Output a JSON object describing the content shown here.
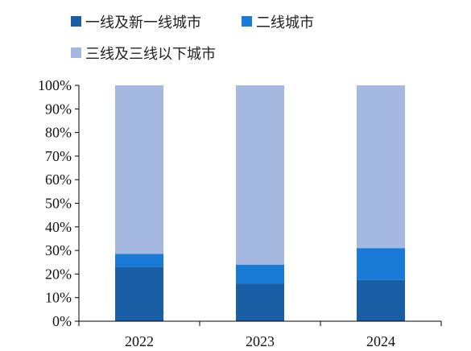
{
  "chart_data": {
    "type": "bar",
    "stacked": true,
    "title": "",
    "xlabel": "",
    "ylabel": "",
    "categories": [
      "2022",
      "2023",
      "2024"
    ],
    "ylim": [
      0,
      100
    ],
    "ytick_step": 10,
    "ytick_suffix": "%",
    "grid": false,
    "legend_position": "top-left",
    "series": [
      {
        "name": "一线及新一线城市",
        "color": "#1a5ea6",
        "values": [
          23,
          16,
          17.5
        ]
      },
      {
        "name": "二线城市",
        "color": "#1a7bd6",
        "values": [
          5.5,
          8,
          13.5
        ]
      },
      {
        "name": "三线及三线以下城市",
        "color": "#a5b9e0",
        "values": [
          71.5,
          76,
          69
        ]
      }
    ]
  }
}
